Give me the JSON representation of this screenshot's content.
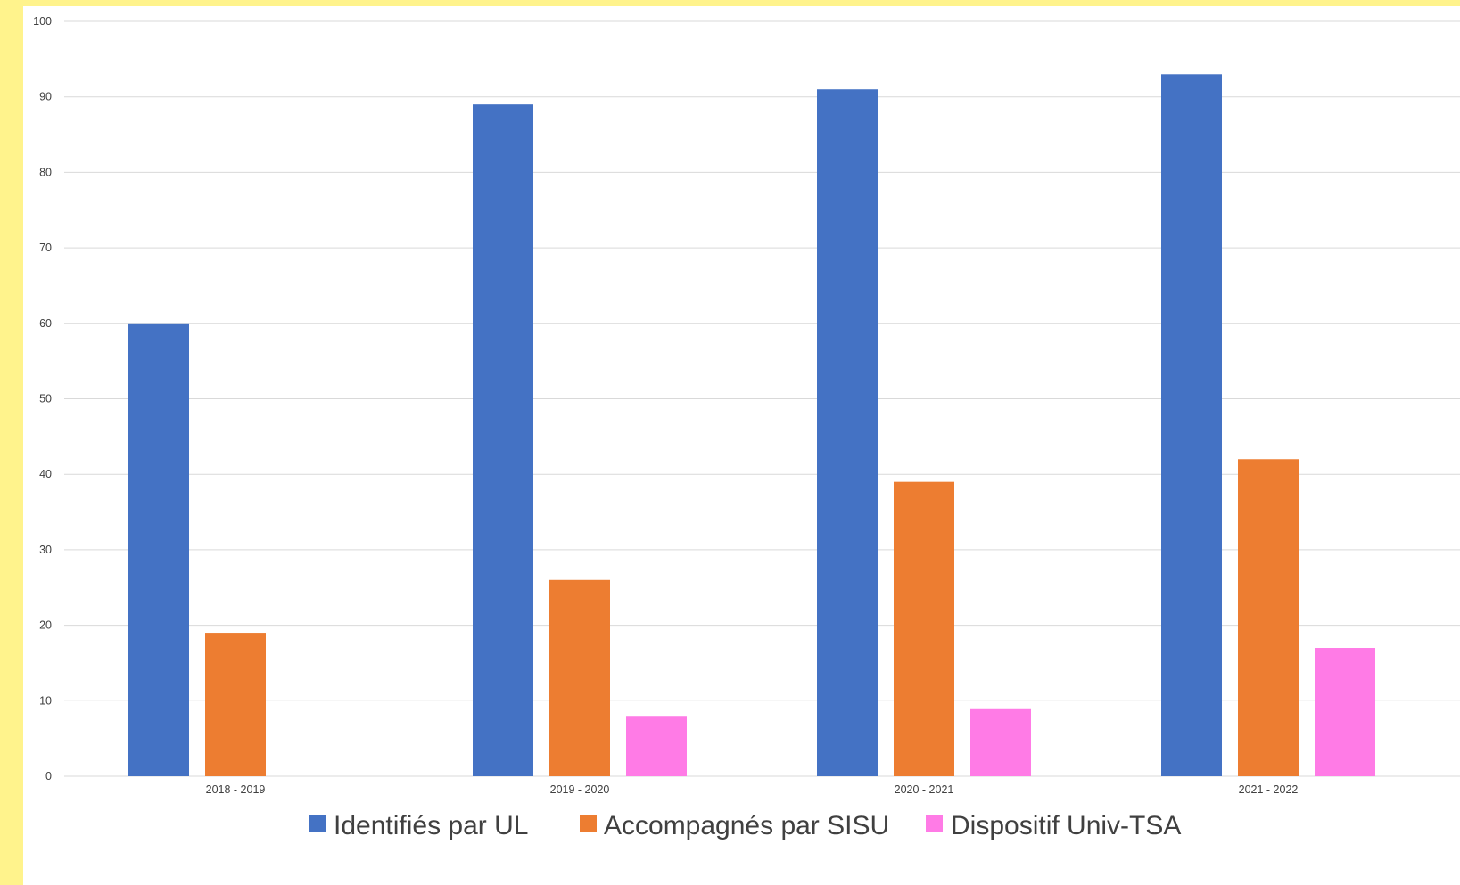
{
  "chart_data": {
    "type": "bar",
    "title": "",
    "xlabel": "",
    "ylabel": "",
    "ylim": [
      0,
      100
    ],
    "yticks": [
      0,
      10,
      20,
      30,
      40,
      50,
      60,
      70,
      80,
      90,
      100
    ],
    "grid": true,
    "legend_position": "bottom",
    "categories": [
      "2018 - 2019",
      "2019 - 2020",
      "2020 - 2021",
      "2021 - 2022"
    ],
    "series": [
      {
        "name": "Identifiés par UL",
        "color": "#4472c4",
        "values": [
          60,
          89,
          91,
          93
        ]
      },
      {
        "name": "Accompagnés par SISU",
        "color": "#ed7d31",
        "values": [
          19,
          26,
          39,
          42
        ]
      },
      {
        "name": "Dispositif Univ-TSA",
        "color": "#ff7be6",
        "values": [
          null,
          8,
          9,
          17
        ]
      }
    ]
  }
}
